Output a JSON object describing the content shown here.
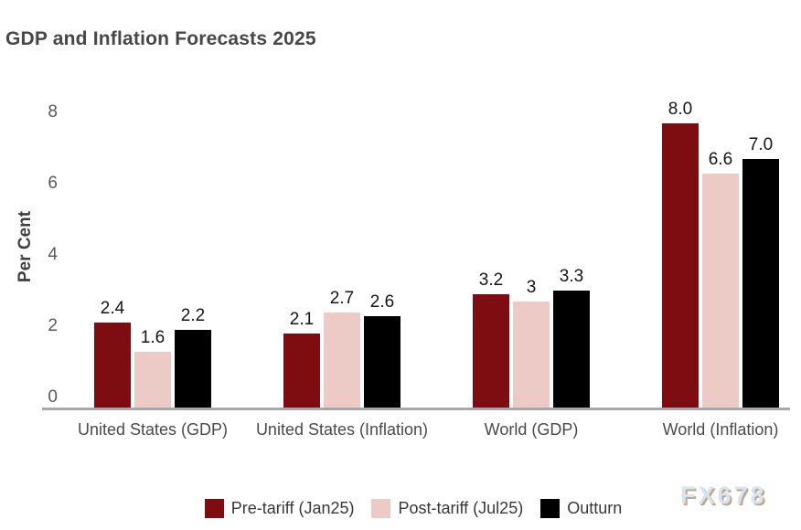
{
  "title": "GDP and Inflation Forecasts 2025",
  "watermark": "FX678",
  "chart_data": {
    "type": "bar",
    "title": "GDP and Inflation Forecasts 2025",
    "xlabel": "",
    "ylabel": "Per Cent",
    "ylim": [
      0,
      8
    ],
    "yticks": [
      0,
      2,
      4,
      6,
      8
    ],
    "grid": false,
    "legend_position": "bottom",
    "categories": [
      "United States (GDP)",
      "United States (Inflation)",
      "World (GDP)",
      "World (Inflation)"
    ],
    "series": [
      {
        "name": "Pre-tariff (Jan25)",
        "color": "#7e0d11",
        "values": [
          2.4,
          2.1,
          3.2,
          8.0
        ],
        "labels": [
          "2.4",
          "2.1",
          "3.2",
          "8.0"
        ]
      },
      {
        "name": "Post-tariff (Jul25)",
        "color": "#eccac6",
        "values": [
          1.6,
          2.7,
          3.0,
          6.6
        ],
        "labels": [
          "1.6",
          "2.7",
          "3",
          "6.6"
        ]
      },
      {
        "name": "Outturn",
        "color": "#000000",
        "values": [
          2.2,
          2.6,
          3.3,
          7.0
        ],
        "labels": [
          "2.2",
          "2.6",
          "3.3",
          "7.0"
        ]
      }
    ]
  },
  "layout_colors": {
    "axis_line": "#a7a7a7",
    "tick_text": "#595959",
    "title_text": "#474747",
    "watermark_fill": "#d6e4f3",
    "watermark_shadow": "#c0a98b"
  }
}
